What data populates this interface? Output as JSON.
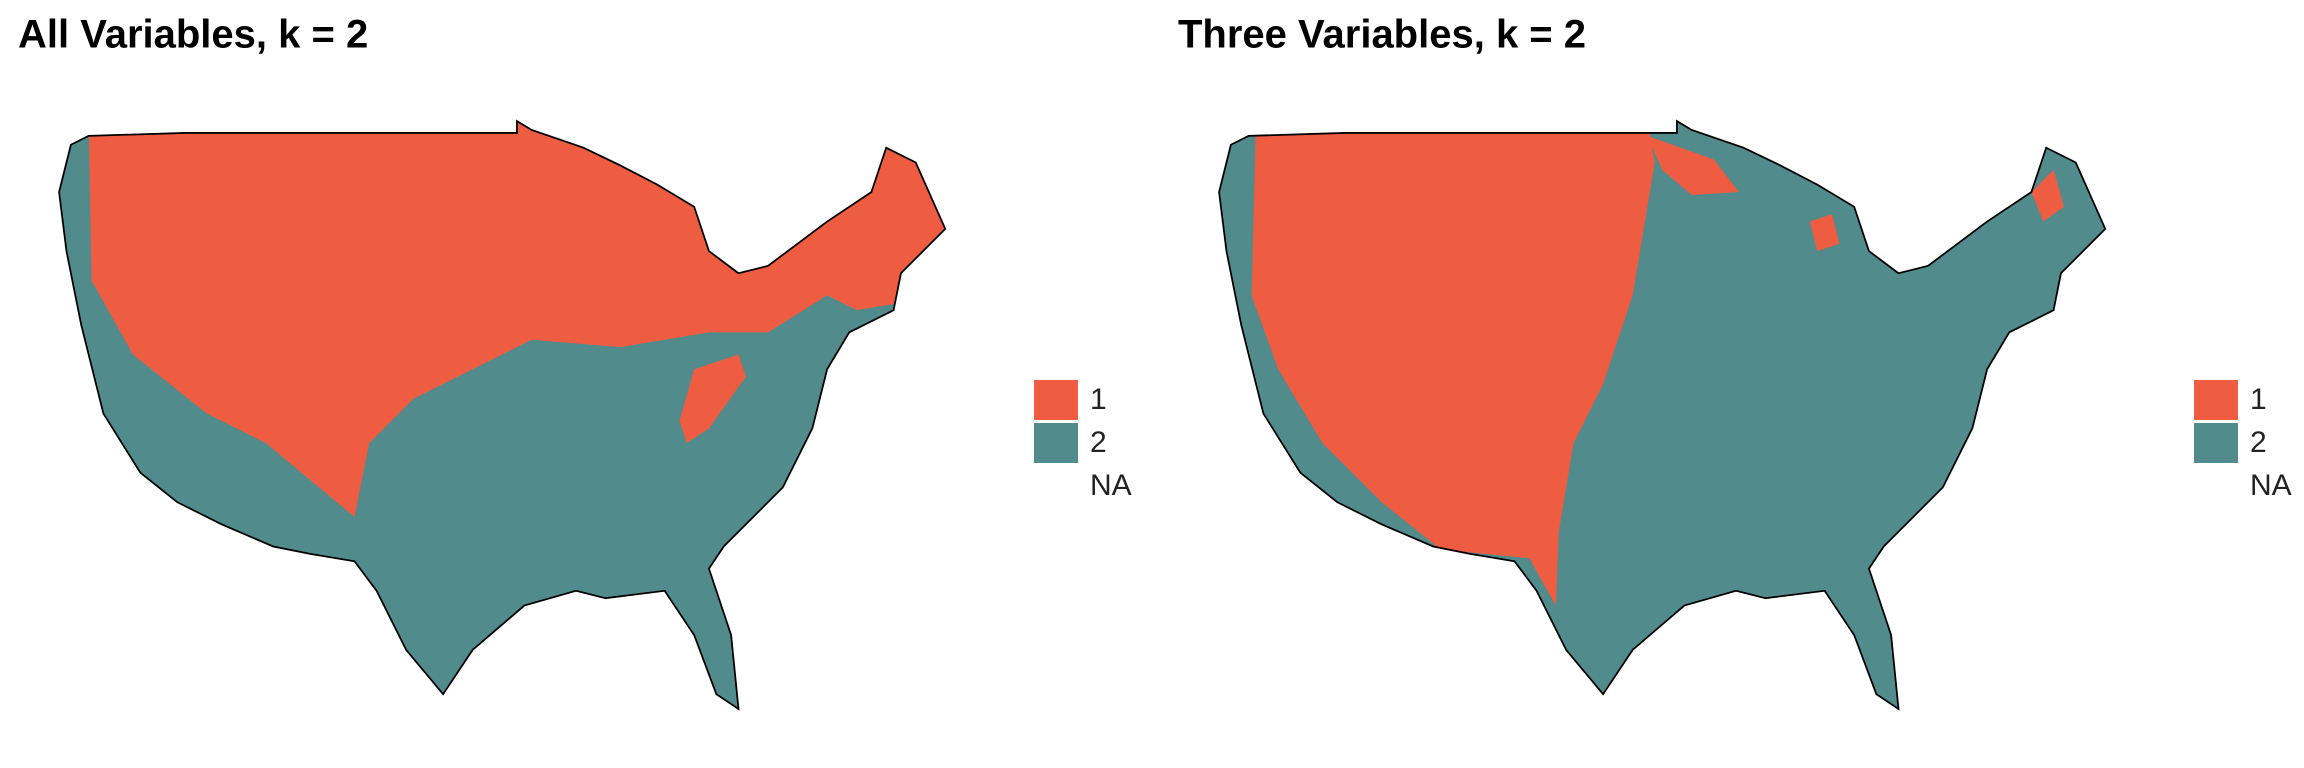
{
  "panels": [
    {
      "title": "All Variables, k = 2",
      "legend": [
        {
          "label": "1",
          "color": "#EE5C42"
        },
        {
          "label": "2",
          "color": "#528B8B"
        },
        {
          "label": "NA"
        }
      ]
    },
    {
      "title": "Three Variables, k = 2",
      "legend": [
        {
          "label": "1",
          "color": "#EE5C42"
        },
        {
          "label": "2",
          "color": "#528B8B"
        },
        {
          "label": "NA"
        }
      ]
    }
  ]
}
